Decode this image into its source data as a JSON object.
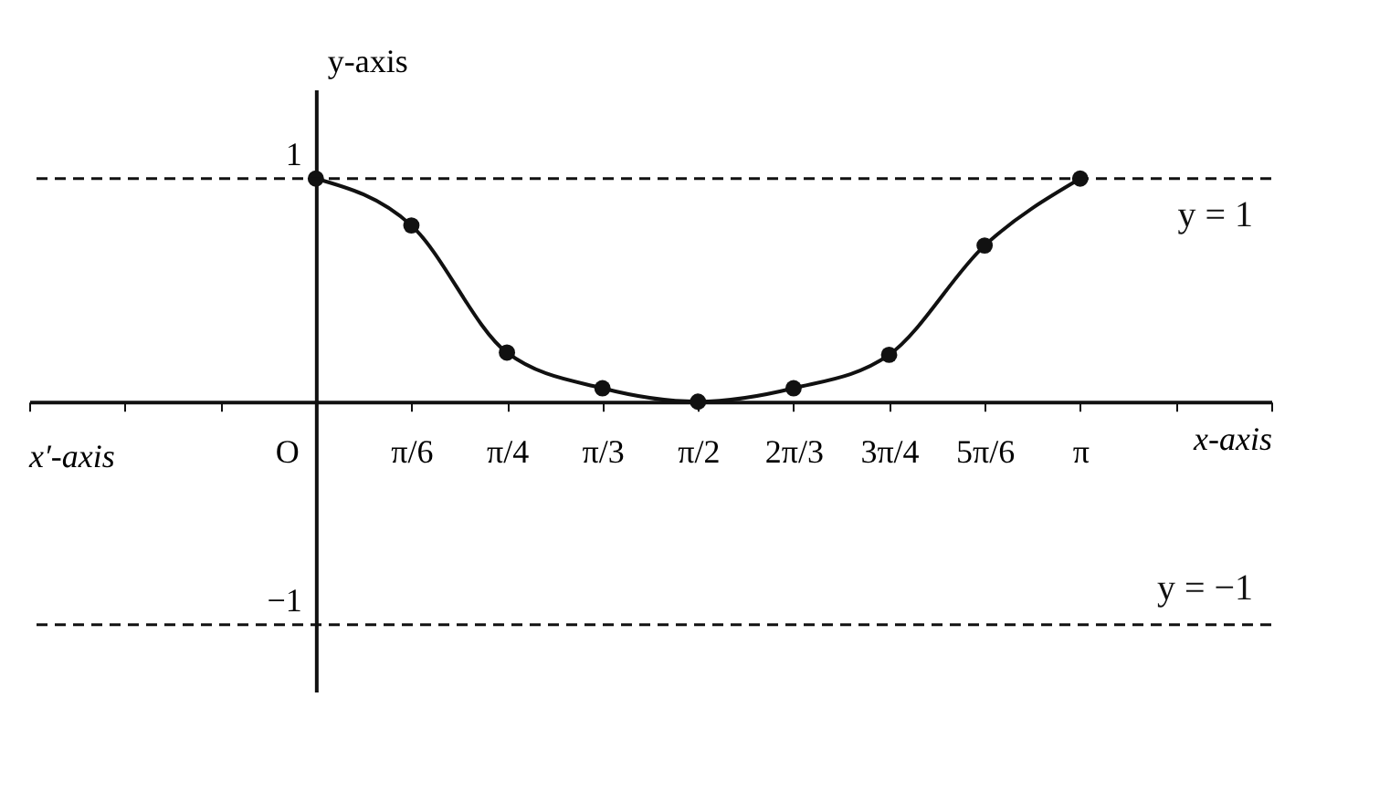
{
  "chart_data": {
    "type": "line",
    "xlabel": "x-axis",
    "ylabel": "y-axis",
    "categories": [
      null,
      null,
      null,
      "O",
      "π/6",
      "π/4",
      "π/3",
      "π/2",
      "2π/3",
      "3π/4",
      "5π/6",
      "π",
      null,
      null
    ],
    "series": [
      {
        "color": "#111111",
        "values": [
          null,
          null,
          null,
          1,
          0.79,
          0.22,
          0.06,
          0,
          0.06,
          0.21,
          0.7,
          1,
          null,
          null
        ]
      }
    ],
    "ylim": [
      -1.3,
      1.4
    ],
    "yticks": [
      1,
      -1
    ],
    "grid": false,
    "marker": "circle",
    "line_style": "solid",
    "ref_lines": [
      {
        "axis": "y",
        "value": 1,
        "label": "y = 1",
        "line_style": "dashed",
        "color": "#111111"
      },
      {
        "axis": "y",
        "value": -1,
        "label": "y = −1",
        "line_style": "dashed",
        "color": "#111111"
      }
    ],
    "annotations": [
      "x′-axis"
    ]
  }
}
